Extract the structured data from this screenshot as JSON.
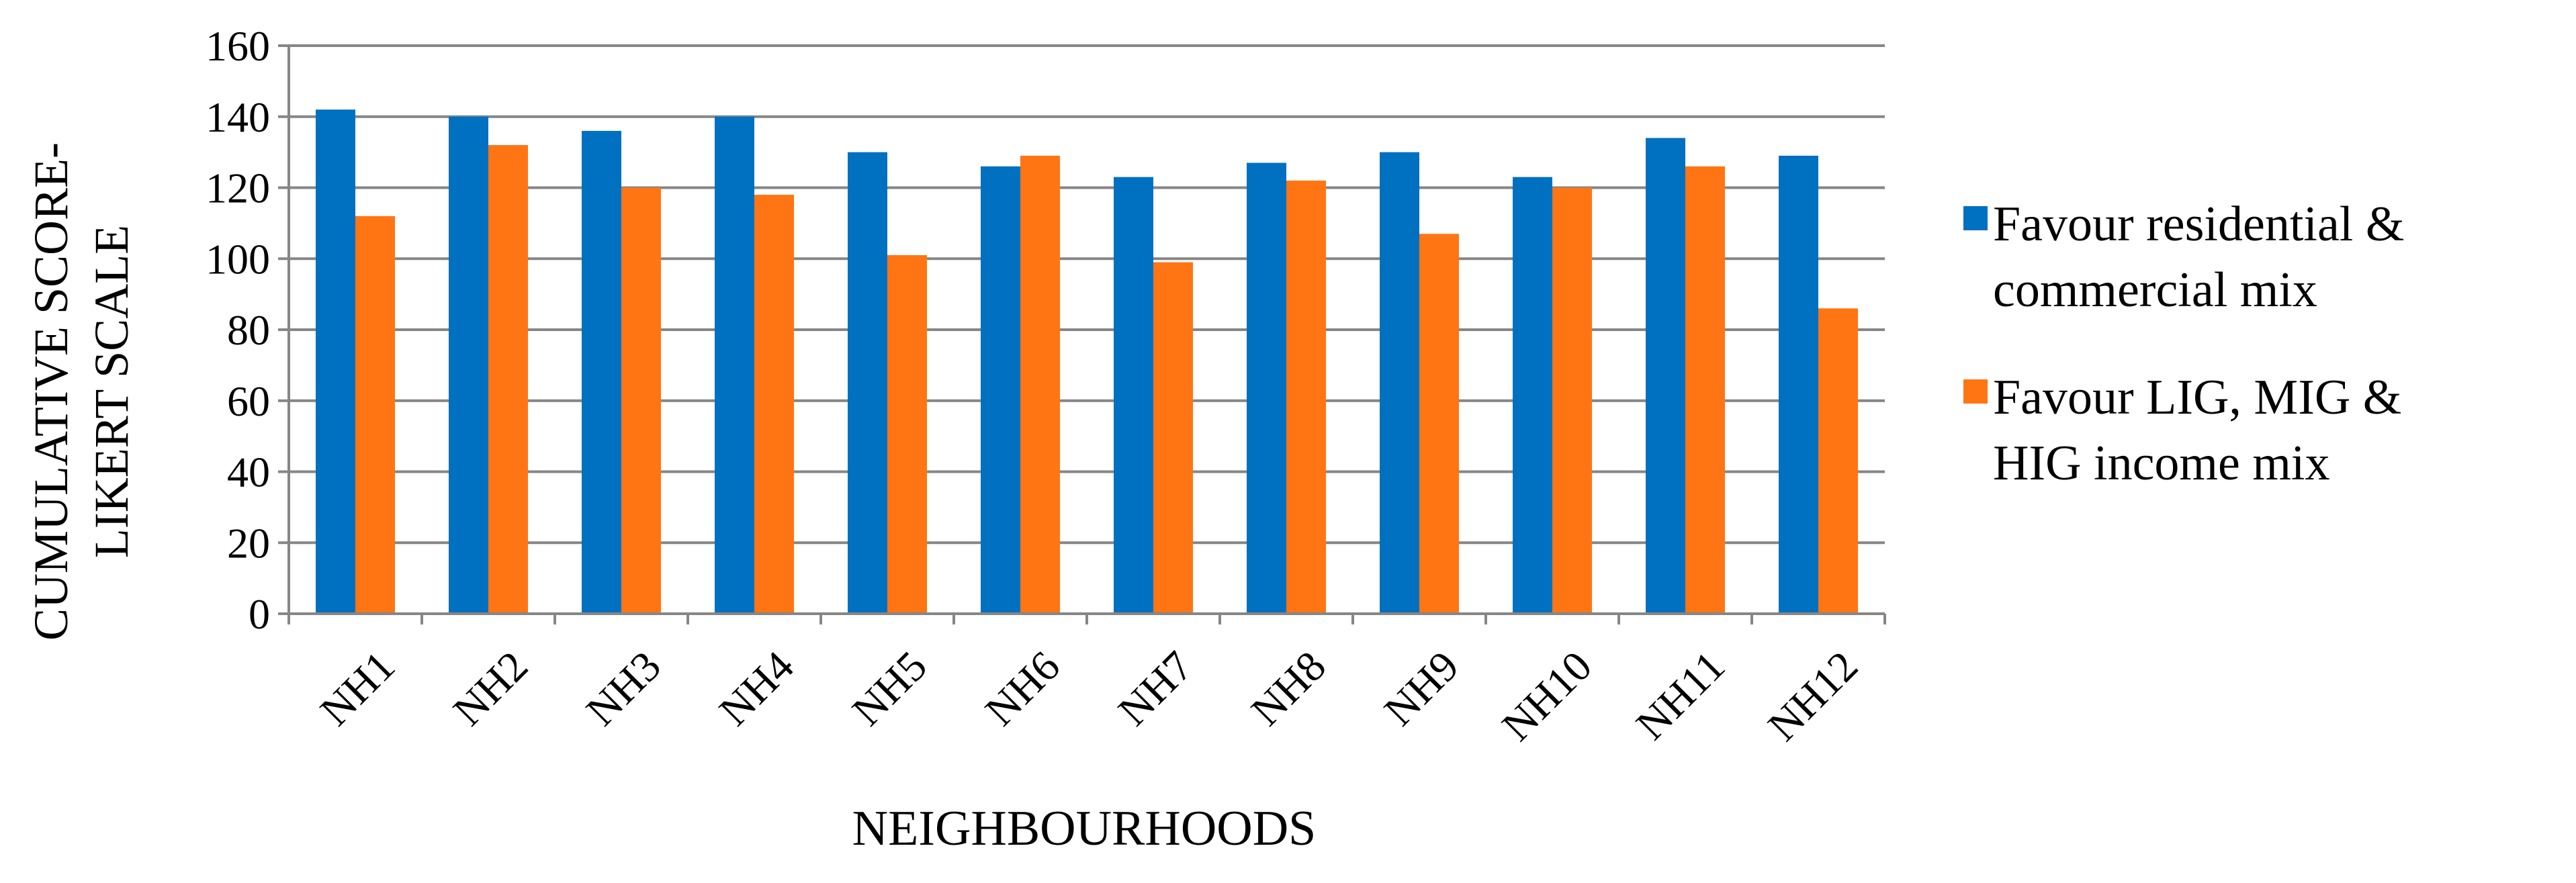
{
  "chart_data": {
    "type": "bar",
    "ylabel": [
      "CUMULATIVE SCORE-",
      "LIKERT SCALE"
    ],
    "xlabel": "NEIGHBOURHOODS",
    "categories": [
      "NH1",
      "NH2",
      "NH3",
      "NH4",
      "NH5",
      "NH6",
      "NH7",
      "NH8",
      "NH9",
      "NH10",
      "NH11",
      "NH12"
    ],
    "series": [
      {
        "name": "Favour residential & commercial mix",
        "color": "#0070c0",
        "values": [
          142,
          140,
          136,
          140,
          130,
          126,
          123,
          127,
          130,
          123,
          134,
          129
        ]
      },
      {
        "name": "Favour LIG, MIG & HIG income mix",
        "color": "#ff7514",
        "values": [
          112,
          132,
          120,
          118,
          101,
          129,
          99,
          122,
          107,
          120,
          126,
          86
        ]
      }
    ],
    "ylim": [
      0,
      160
    ],
    "yticks": [
      0,
      20,
      40,
      60,
      80,
      100,
      120,
      140,
      160
    ],
    "grid": true,
    "legend": "right"
  }
}
